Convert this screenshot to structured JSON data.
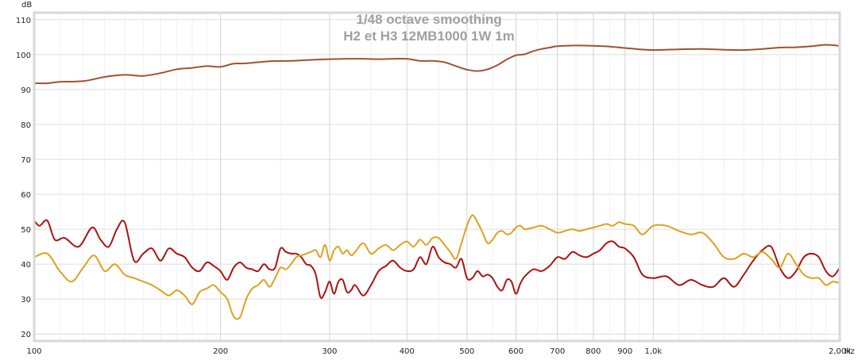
{
  "chart_data": {
    "type": "line",
    "title": [
      "1/48 octave smoothing",
      "H2 et H3 12MB1000 1W 1m"
    ],
    "y_unit_label": "dB",
    "x_unit_label": "Hz",
    "x_scale": "log",
    "xlim": [
      100,
      2000
    ],
    "ylim": [
      18,
      112
    ],
    "y_ticks": [
      20,
      30,
      40,
      50,
      60,
      70,
      80,
      90,
      100,
      110
    ],
    "y_tick_labels": [
      "20",
      "30",
      "40",
      "50",
      "60",
      "70",
      "80",
      "90",
      "100",
      "110"
    ],
    "x_ticks": [
      100,
      200,
      300,
      400,
      500,
      600,
      700,
      800,
      900,
      1000,
      2000
    ],
    "x_tick_labels": [
      "100",
      "200",
      "300",
      "400",
      "500",
      "600",
      "700",
      "800",
      "900",
      "1,0k",
      "2,00k"
    ],
    "grid": true,
    "legend": "none",
    "series": [
      {
        "color": "#a0522d",
        "x": [
          100,
          105,
          110,
          120,
          130,
          140,
          150,
          160,
          170,
          180,
          190,
          200,
          210,
          220,
          240,
          260,
          280,
          300,
          320,
          340,
          360,
          380,
          400,
          420,
          440,
          460,
          480,
          500,
          520,
          540,
          560,
          580,
          600,
          620,
          640,
          660,
          680,
          700,
          750,
          800,
          850,
          900,
          950,
          1000,
          1100,
          1200,
          1300,
          1400,
          1500,
          1600,
          1700,
          1800,
          1900,
          2000
        ],
        "y": [
          91.8,
          91.8,
          92.2,
          92.4,
          93.6,
          94.2,
          93.9,
          94.7,
          95.8,
          96.2,
          96.7,
          96.5,
          97.4,
          97.5,
          98.1,
          98.2,
          98.5,
          98.7,
          98.8,
          98.8,
          98.7,
          98.8,
          98.8,
          98.2,
          98.2,
          97.8,
          96.7,
          95.7,
          95.3,
          95.8,
          97.0,
          98.6,
          99.8,
          100.1,
          101.0,
          101.6,
          102.0,
          102.4,
          102.6,
          102.5,
          102.3,
          101.9,
          101.5,
          101.3,
          101.5,
          101.6,
          101.4,
          101.3,
          101.6,
          102.0,
          102.1,
          102.4,
          102.8,
          102.5
        ]
      },
      {
        "color": "#b01010",
        "x": [
          100,
          102,
          105,
          108,
          112,
          118,
          124,
          128,
          132,
          136,
          140,
          145,
          150,
          155,
          160,
          165,
          170,
          175,
          180,
          185,
          190,
          195,
          200,
          205,
          210,
          215,
          220,
          225,
          230,
          235,
          240,
          245,
          250,
          255,
          260,
          265,
          270,
          275,
          280,
          285,
          290,
          295,
          300,
          305,
          310,
          315,
          320,
          325,
          330,
          340,
          350,
          360,
          370,
          380,
          390,
          400,
          410,
          420,
          430,
          440,
          450,
          460,
          470,
          480,
          490,
          500,
          510,
          520,
          530,
          540,
          550,
          560,
          570,
          580,
          590,
          600,
          610,
          620,
          640,
          660,
          680,
          700,
          720,
          740,
          760,
          780,
          800,
          820,
          840,
          860,
          880,
          900,
          930,
          960,
          1000,
          1050,
          1100,
          1150,
          1200,
          1250,
          1300,
          1350,
          1400,
          1450,
          1500,
          1550,
          1600,
          1650,
          1700,
          1750,
          1800,
          1850,
          1900,
          1950,
          2000
        ],
        "y": [
          52.5,
          51.0,
          52.5,
          47.0,
          47.5,
          45.0,
          50.5,
          47.0,
          45.0,
          50.0,
          52.0,
          41.0,
          43.0,
          44.5,
          41.0,
          44.5,
          43.0,
          42.0,
          39.0,
          38.0,
          40.5,
          39.5,
          38.0,
          35.5,
          39.0,
          40.5,
          39.0,
          38.5,
          38.0,
          40.0,
          38.5,
          39.0,
          44.5,
          43.5,
          43.0,
          43.0,
          42.0,
          40.0,
          39.5,
          37.0,
          30.5,
          32.0,
          35.0,
          31.5,
          35.0,
          35.5,
          32.0,
          32.5,
          34.0,
          31.0,
          34.0,
          38.0,
          39.5,
          41.0,
          39.0,
          38.0,
          38.5,
          42.0,
          40.0,
          45.0,
          42.0,
          40.5,
          40.0,
          39.0,
          41.5,
          36.0,
          36.0,
          38.0,
          36.5,
          37.0,
          36.0,
          33.5,
          32.5,
          35.5,
          35.0,
          31.5,
          34.5,
          36.5,
          38.5,
          38.0,
          39.5,
          42.0,
          41.5,
          43.5,
          42.5,
          42.0,
          43.0,
          44.0,
          46.0,
          46.5,
          45.0,
          44.5,
          42.0,
          37.0,
          36.0,
          36.5,
          34.0,
          35.5,
          34.0,
          33.5,
          36.0,
          33.5,
          37.0,
          41.0,
          44.0,
          45.0,
          39.0,
          36.0,
          38.0,
          42.0,
          43.0,
          42.0,
          38.0,
          36.5,
          39.0
        ]
      },
      {
        "color": "#e0a020",
        "x": [
          100,
          105,
          110,
          115,
          120,
          125,
          130,
          135,
          140,
          145,
          150,
          155,
          160,
          165,
          170,
          175,
          180,
          185,
          190,
          195,
          200,
          205,
          210,
          215,
          220,
          225,
          230,
          235,
          240,
          245,
          250,
          255,
          260,
          265,
          270,
          275,
          280,
          285,
          290,
          295,
          300,
          305,
          310,
          315,
          320,
          325,
          330,
          340,
          350,
          360,
          370,
          380,
          390,
          400,
          410,
          420,
          430,
          440,
          450,
          460,
          470,
          480,
          490,
          500,
          510,
          520,
          530,
          540,
          550,
          560,
          570,
          580,
          590,
          600,
          610,
          620,
          640,
          660,
          680,
          700,
          720,
          740,
          760,
          780,
          800,
          820,
          840,
          860,
          880,
          900,
          930,
          960,
          1000,
          1050,
          1100,
          1150,
          1200,
          1250,
          1300,
          1350,
          1400,
          1450,
          1500,
          1550,
          1600,
          1650,
          1700,
          1750,
          1800,
          1850,
          1900,
          1950,
          2000
        ],
        "y": [
          42.0,
          43.0,
          38.0,
          35.0,
          39.0,
          42.5,
          38.0,
          40.0,
          37.0,
          36.0,
          35.0,
          34.0,
          32.5,
          31.0,
          32.5,
          31.0,
          28.5,
          32.0,
          33.0,
          34.0,
          32.0,
          30.0,
          25.0,
          24.8,
          30.0,
          33.0,
          34.0,
          35.5,
          33.5,
          36.0,
          39.0,
          38.5,
          40.0,
          42.0,
          42.5,
          43.0,
          43.5,
          44.0,
          42.0,
          45.5,
          41.0,
          44.0,
          45.0,
          43.0,
          44.0,
          42.5,
          43.5,
          46.0,
          43.0,
          44.5,
          45.5,
          44.0,
          45.5,
          46.5,
          45.0,
          47.0,
          45.5,
          47.5,
          47.5,
          45.5,
          43.5,
          41.5,
          46.0,
          51.0,
          54.0,
          52.0,
          49.0,
          46.0,
          47.0,
          49.0,
          49.5,
          48.5,
          49.0,
          50.5,
          51.0,
          50.0,
          50.5,
          51.0,
          50.0,
          49.0,
          49.5,
          50.0,
          49.5,
          50.0,
          50.5,
          51.0,
          51.5,
          51.0,
          52.0,
          51.5,
          51.0,
          48.5,
          51.0,
          51.0,
          49.5,
          48.5,
          49.0,
          46.0,
          42.0,
          41.5,
          43.0,
          42.0,
          43.5,
          41.5,
          39.0,
          43.0,
          40.0,
          37.0,
          36.0,
          36.0,
          34.0,
          35.0,
          34.5
        ]
      }
    ]
  }
}
